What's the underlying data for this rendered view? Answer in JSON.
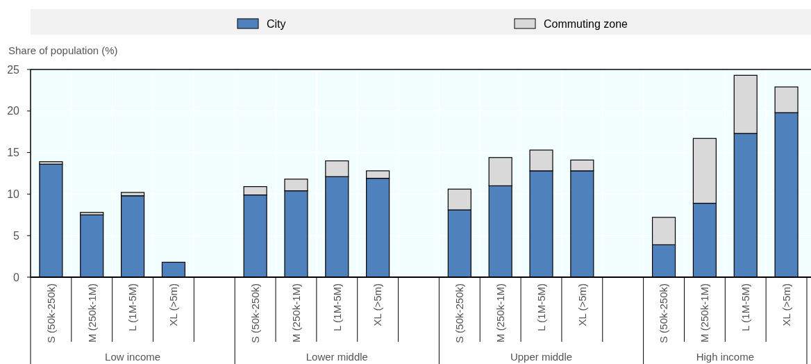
{
  "chart_data": {
    "type": "bar",
    "stacked": true,
    "ylabel": "Share of population (%)",
    "categories": [
      "S (50k-250k)",
      "M (250k-1M)",
      "L (1M-5M)",
      "XL (>5m)",
      null,
      "S (50k-250k)",
      "M (250k-1M)",
      "L (1M-5M)",
      "XL (>5m)",
      null,
      "S (50k-250k)",
      "M (250k-1M)",
      "L (1M-5M)",
      "XL (>5m)",
      null,
      "S (50k-250k)",
      "M (250k-1M)",
      "L (1M-5M)",
      "XL (>5m)"
    ],
    "series": [
      {
        "name": "City",
        "color": "#4f81bd",
        "values": [
          13.6,
          7.5,
          9.8,
          1.8,
          null,
          9.9,
          10.4,
          12.1,
          11.9,
          null,
          8.1,
          11.0,
          12.8,
          12.8,
          null,
          3.9,
          8.9,
          17.3,
          19.8
        ]
      },
      {
        "name": "Commuting zone",
        "color": "#d9d9d9",
        "values": [
          0.3,
          0.3,
          0.4,
          0,
          null,
          1.0,
          1.4,
          1.9,
          0.9,
          null,
          2.5,
          3.4,
          2.5,
          1.3,
          null,
          3.3,
          7.8,
          7.0,
          3.1
        ]
      }
    ],
    "annotations": [
      "Low income",
      "Lower middle",
      "Upper middle",
      "High income"
    ],
    "ylim": [
      0,
      25
    ],
    "yticks": [
      0,
      5,
      10,
      15,
      20,
      25
    ],
    "grid": true,
    "legend": "top"
  }
}
